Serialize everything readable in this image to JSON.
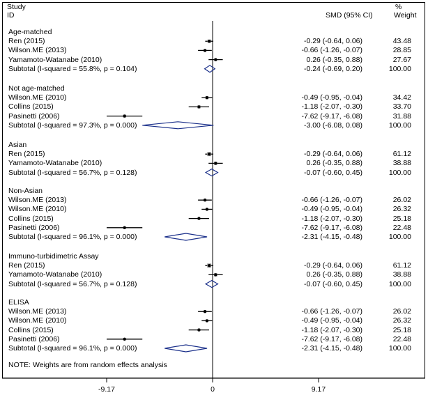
{
  "header": {
    "study": "Study",
    "id": "ID",
    "smd": "SMD (95% CI)",
    "pct": "%",
    "weight": "Weight"
  },
  "note": "NOTE: Weights are from random effects analysis",
  "chart_data": {
    "type": "forest",
    "axis": {
      "ticks": [
        -9.17,
        0,
        9.17
      ],
      "tick_labels": [
        "-9.17",
        "0",
        "9.17"
      ]
    },
    "groups": [
      {
        "title": "Age-matched",
        "studies": [
          {
            "label": "Ren  (2015)",
            "est": -0.29,
            "lo": -0.64,
            "hi": 0.06,
            "ci": "-0.29 (-0.64, 0.06)",
            "weight": "43.48"
          },
          {
            "label": "Wilson.ME (2013)",
            "est": -0.66,
            "lo": -1.26,
            "hi": -0.07,
            "ci": "-0.66 (-1.26, -0.07)",
            "weight": "28.85"
          },
          {
            "label": "Yamamoto-Watanabe (2010)",
            "est": 0.26,
            "lo": -0.35,
            "hi": 0.88,
            "ci": "0.26 (-0.35, 0.88)",
            "weight": "27.67"
          }
        ],
        "subtotal": {
          "label": "Subtotal  (I-squared = 55.8%, p = 0.104)",
          "est": -0.24,
          "lo": -0.69,
          "hi": 0.2,
          "ci": "-0.24 (-0.69, 0.20)",
          "weight": "100.00"
        }
      },
      {
        "title": "Not age-matched",
        "studies": [
          {
            "label": "Wilson.ME (2010)",
            "est": -0.49,
            "lo": -0.95,
            "hi": -0.04,
            "ci": "-0.49 (-0.95, -0.04)",
            "weight": "34.42"
          },
          {
            "label": "Collins (2015)",
            "est": -1.18,
            "lo": -2.07,
            "hi": -0.3,
            "ci": "-1.18 (-2.07, -0.30)",
            "weight": "33.70"
          },
          {
            "label": "Pasinetti (2006)",
            "est": -7.62,
            "lo": -9.17,
            "hi": -6.08,
            "ci": "-7.62 (-9.17, -6.08)",
            "weight": "31.88"
          }
        ],
        "subtotal": {
          "label": "Subtotal  (I-squared = 97.3%, p = 0.000)",
          "est": -3.0,
          "lo": -6.08,
          "hi": 0.08,
          "ci": "-3.00 (-6.08, 0.08)",
          "weight": "100.00"
        }
      },
      {
        "title": "Asian",
        "studies": [
          {
            "label": "Ren  (2015)",
            "est": -0.29,
            "lo": -0.64,
            "hi": 0.06,
            "ci": "-0.29 (-0.64, 0.06)",
            "weight": "61.12"
          },
          {
            "label": "Yamamoto-Watanabe (2010)",
            "est": 0.26,
            "lo": -0.35,
            "hi": 0.88,
            "ci": "0.26 (-0.35, 0.88)",
            "weight": "38.88"
          }
        ],
        "subtotal": {
          "label": "Subtotal  (I-squared = 56.7%, p = 0.128)",
          "est": -0.07,
          "lo": -0.6,
          "hi": 0.45,
          "ci": "-0.07 (-0.60, 0.45)",
          "weight": "100.00"
        }
      },
      {
        "title": "Non-Asian",
        "studies": [
          {
            "label": "Wilson.ME (2013)",
            "est": -0.66,
            "lo": -1.26,
            "hi": -0.07,
            "ci": "-0.66 (-1.26, -0.07)",
            "weight": "26.02"
          },
          {
            "label": "Wilson.ME (2010)",
            "est": -0.49,
            "lo": -0.95,
            "hi": -0.04,
            "ci": "-0.49 (-0.95, -0.04)",
            "weight": "26.32"
          },
          {
            "label": "Collins (2015)",
            "est": -1.18,
            "lo": -2.07,
            "hi": -0.3,
            "ci": "-1.18 (-2.07, -0.30)",
            "weight": "25.18"
          },
          {
            "label": "Pasinetti (2006)",
            "est": -7.62,
            "lo": -9.17,
            "hi": -6.08,
            "ci": "-7.62 (-9.17, -6.08)",
            "weight": "22.48"
          }
        ],
        "subtotal": {
          "label": "Subtotal  (I-squared = 96.1%, p = 0.000)",
          "est": -2.31,
          "lo": -4.15,
          "hi": -0.48,
          "ci": "-2.31 (-4.15, -0.48)",
          "weight": "100.00"
        }
      },
      {
        "title": "Immuno-turbidimetric Assay",
        "studies": [
          {
            "label": "Ren  (2015)",
            "est": -0.29,
            "lo": -0.64,
            "hi": 0.06,
            "ci": "-0.29 (-0.64, 0.06)",
            "weight": "61.12"
          },
          {
            "label": "Yamamoto-Watanabe (2010)",
            "est": 0.26,
            "lo": -0.35,
            "hi": 0.88,
            "ci": "0.26 (-0.35, 0.88)",
            "weight": "38.88"
          }
        ],
        "subtotal": {
          "label": "Subtotal  (I-squared = 56.7%, p = 0.128)",
          "est": -0.07,
          "lo": -0.6,
          "hi": 0.45,
          "ci": "-0.07 (-0.60, 0.45)",
          "weight": "100.00"
        }
      },
      {
        "title": "ELISA",
        "studies": [
          {
            "label": "Wilson.ME (2013)",
            "est": -0.66,
            "lo": -1.26,
            "hi": -0.07,
            "ci": "-0.66 (-1.26, -0.07)",
            "weight": "26.02"
          },
          {
            "label": "Wilson.ME (2010)",
            "est": -0.49,
            "lo": -0.95,
            "hi": -0.04,
            "ci": "-0.49 (-0.95, -0.04)",
            "weight": "26.32"
          },
          {
            "label": "Collins (2015)",
            "est": -1.18,
            "lo": -2.07,
            "hi": -0.3,
            "ci": "-1.18 (-2.07, -0.30)",
            "weight": "25.18"
          },
          {
            "label": "Pasinetti (2006)",
            "est": -7.62,
            "lo": -9.17,
            "hi": -6.08,
            "ci": "-7.62 (-9.17, -6.08)",
            "weight": "22.48"
          }
        ],
        "subtotal": {
          "label": "Subtotal  (I-squared = 96.1%, p = 0.000)",
          "est": -2.31,
          "lo": -4.15,
          "hi": -0.48,
          "ci": "-2.31 (-4.15, -0.48)",
          "weight": "100.00"
        }
      }
    ]
  }
}
